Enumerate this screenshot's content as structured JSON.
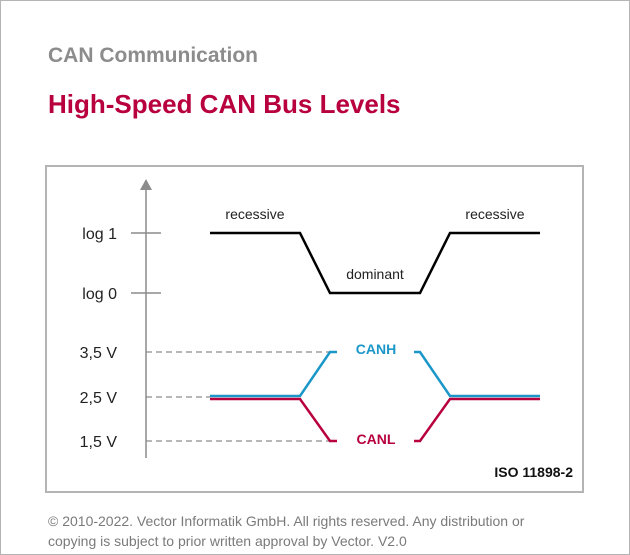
{
  "header": {
    "subtitle": "CAN Communication",
    "title": "High-Speed CAN Bus Levels"
  },
  "diagram": {
    "y_labels": [
      "log 1",
      "log 0",
      "3,5 V",
      "2,5 V",
      "1,5 V"
    ],
    "state_labels": {
      "recessive_left": "recessive",
      "dominant": "dominant",
      "recessive_right": "recessive"
    },
    "signals": {
      "canh": "CANH",
      "canl": "CANL"
    },
    "standard": "ISO 11898-2",
    "colors": {
      "logic": "#000000",
      "canh": "#1a97c8",
      "canl": "#b8003f",
      "axis": "#8c8c8c"
    }
  },
  "footer": {
    "line1": "© 2010-2022. Vector Informatik GmbH. All rights reserved. Any distribution or",
    "line2": "copying is subject to prior written approval by Vector. V2.0"
  }
}
